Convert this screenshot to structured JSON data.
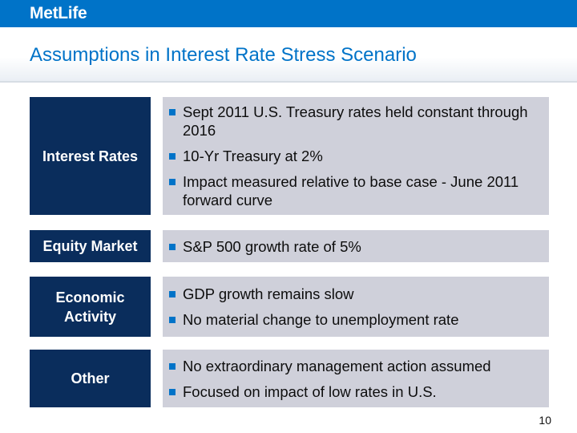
{
  "header": {
    "logo_text": "MetLife",
    "title": "Assumptions in Interest Rate Stress Scenario"
  },
  "colors": {
    "brand_blue": "#0073c8",
    "label_navy": "#0a2d5c",
    "content_gray": "#cfd0da"
  },
  "rows": [
    {
      "label": "Interest Rates",
      "bullets": [
        "Sept 2011 U.S. Treasury rates held constant through 2016",
        "10-Yr Treasury at 2%",
        "Impact measured relative to base case - June 2011 forward curve"
      ]
    },
    {
      "label": "Equity Market",
      "bullets": [
        "S&P 500 growth rate of 5%"
      ]
    },
    {
      "label": "Economic Activity",
      "bullets": [
        "GDP growth remains slow",
        "No material change to unemployment rate"
      ]
    },
    {
      "label": "Other",
      "bullets": [
        "No extraordinary management action assumed",
        "Focused on impact of low rates in U.S."
      ]
    }
  ],
  "footer": {
    "page_number": "10"
  }
}
